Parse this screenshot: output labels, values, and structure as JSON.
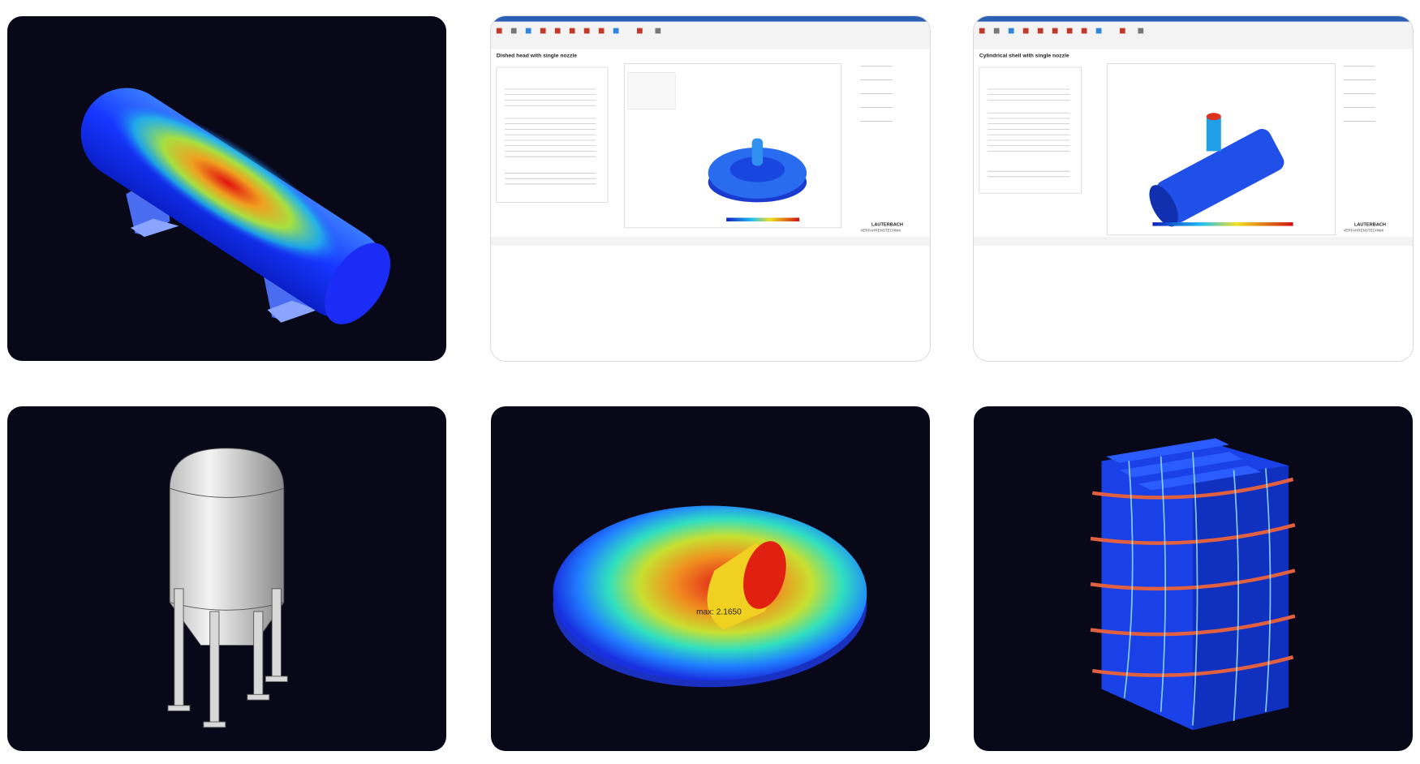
{
  "screenshot_1": {
    "title": "Dished head with single nozzle",
    "brand": "LAUTERBACH",
    "brand_sub": "VERFAHRENSTECHNIK"
  },
  "screenshot_2": {
    "title": "Cylindrical shell with single nozzle",
    "brand": "LAUTERBACH",
    "brand_sub": "VERFAHRENSTECHNIK"
  },
  "plot_5": {
    "annotation": "max: 2.1650"
  }
}
